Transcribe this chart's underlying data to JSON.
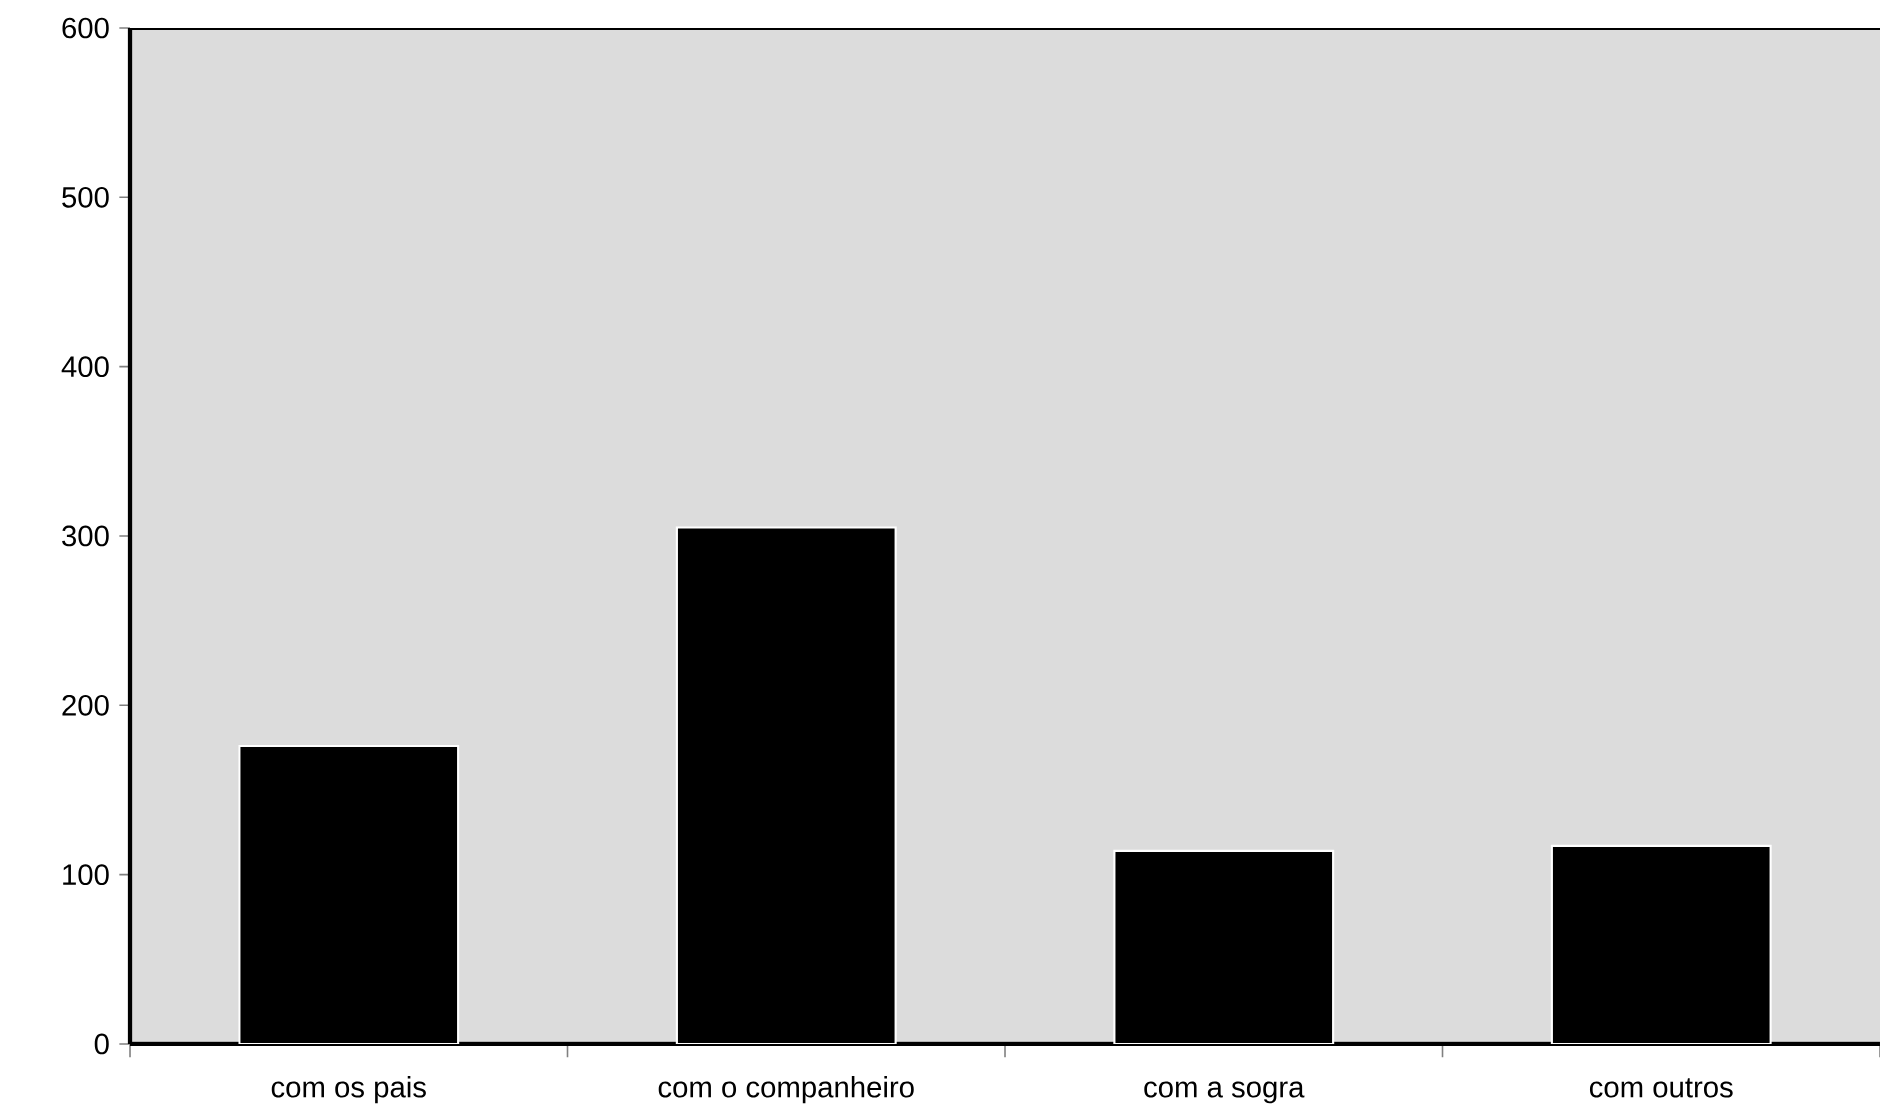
{
  "chart_data": {
    "type": "bar",
    "categories": [
      "com os pais",
      "com o companheiro",
      "com a sogra",
      "com outros"
    ],
    "values": [
      176,
      305,
      114,
      117
    ],
    "color": "#000000",
    "ylim": [
      0,
      600
    ],
    "yticks": [
      0,
      100,
      200,
      300,
      400,
      500,
      600
    ],
    "grid": false
  }
}
